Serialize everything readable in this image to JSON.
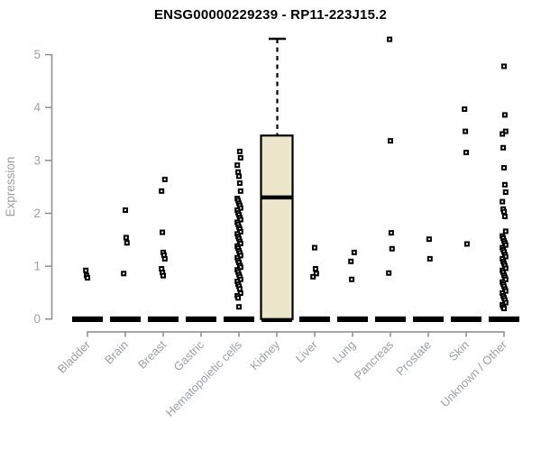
{
  "chart_data": {
    "type": "boxplot",
    "title": "ENSG00000229239 - RP11-223J15.2",
    "xlabel": "",
    "ylabel": "Expression",
    "ylim": [
      0,
      5.45
    ],
    "yticks": [
      0,
      1,
      2,
      3,
      4,
      5
    ],
    "grid": false,
    "legend": "none",
    "categories": [
      "Bladder",
      "Brain",
      "Breast",
      "Gastric",
      "Hematopoietic cells",
      "Kidney",
      "Liver",
      "Lung",
      "Pancreas",
      "Prostate",
      "Skin",
      "Unknown / Other"
    ],
    "colors": {
      "box_fill": "#ece7cb",
      "data": "#000000",
      "axis_line": "#8c8c8c",
      "axis_text": "#9aa0a8"
    },
    "series": [
      {
        "category": "Bladder",
        "zero_bar": true,
        "points": [
          0.92,
          0.82,
          0.78
        ]
      },
      {
        "category": "Brain",
        "zero_bar": true,
        "points": [
          2.06,
          1.54,
          1.44,
          0.86
        ]
      },
      {
        "category": "Breast",
        "zero_bar": true,
        "points": [
          2.64,
          2.42,
          1.64,
          1.26,
          1.21,
          1.14,
          0.95,
          0.88,
          0.82
        ]
      },
      {
        "category": "Gastric",
        "zero_bar": true,
        "points": []
      },
      {
        "category": "Hematopoietic cells",
        "zero_bar": true,
        "points": [
          3.17,
          3.05,
          2.91,
          2.78,
          2.7,
          2.57,
          2.42,
          2.28,
          2.24,
          2.19,
          2.15,
          2.1,
          2.06,
          2.01,
          1.97,
          1.92,
          1.88,
          1.83,
          1.79,
          1.74,
          1.7,
          1.65,
          1.61,
          1.56,
          1.52,
          1.47,
          1.43,
          1.38,
          1.34,
          1.29,
          1.25,
          1.2,
          1.16,
          1.11,
          1.07,
          1.02,
          0.98,
          0.93,
          0.89,
          0.84,
          0.8,
          0.75,
          0.71,
          0.66,
          0.62,
          0.57,
          0.49,
          0.44,
          0.4,
          0.23
        ]
      },
      {
        "category": "Kidney",
        "zero_bar": true,
        "box": {
          "q1": 0,
          "median": 2.3,
          "q3": 3.47,
          "whisker_high": 5.3
        },
        "points": []
      },
      {
        "category": "Liver",
        "zero_bar": true,
        "points": [
          1.35,
          0.95,
          0.86,
          0.8
        ]
      },
      {
        "category": "Lung",
        "zero_bar": true,
        "points": [
          1.26,
          1.09,
          0.75
        ]
      },
      {
        "category": "Pancreas",
        "zero_bar": true,
        "points": [
          5.29,
          3.37,
          1.63,
          1.33,
          0.87
        ]
      },
      {
        "category": "Prostate",
        "zero_bar": true,
        "points": [
          1.51,
          1.14
        ]
      },
      {
        "category": "Skin",
        "zero_bar": true,
        "points": [
          3.97,
          3.55,
          3.15,
          1.42
        ]
      },
      {
        "category": "Unknown / Other",
        "zero_bar": true,
        "points": [
          4.78,
          3.86,
          3.55,
          3.5,
          3.24,
          2.86,
          2.54,
          2.4,
          2.22,
          2.08,
          2.03,
          1.94,
          1.66,
          1.57,
          1.53,
          1.48,
          1.44,
          1.4,
          1.35,
          1.31,
          1.27,
          1.22,
          1.18,
          1.14,
          1.09,
          1.05,
          1.01,
          0.96,
          0.92,
          0.88,
          0.83,
          0.79,
          0.75,
          0.7,
          0.66,
          0.62,
          0.57,
          0.53,
          0.49,
          0.44,
          0.4,
          0.36,
          0.31,
          0.27,
          0.23,
          0.2
        ]
      }
    ]
  }
}
